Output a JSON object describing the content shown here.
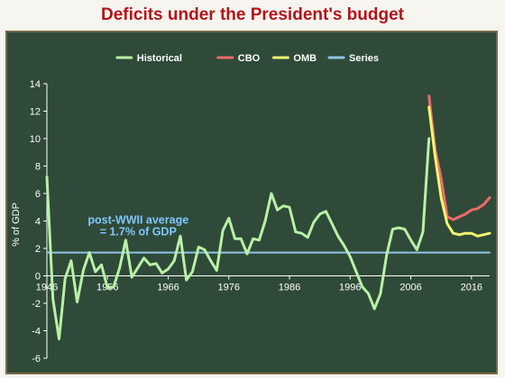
{
  "title": "Deficits under the President's budget",
  "colors": {
    "background": "#2f4a38",
    "historical": "#b8f0a8",
    "cbo": "#f06a6a",
    "omb": "#f5f56e",
    "series": "#8fc4e4",
    "title": "#b3141b"
  },
  "chart_data": {
    "type": "line",
    "title": "Deficits under the President's budget",
    "xlabel": "",
    "ylabel": "% of GDP",
    "xlim": [
      1946,
      2019
    ],
    "ylim": [
      -6,
      14
    ],
    "x_ticks": [
      1946,
      1956,
      1966,
      1976,
      1986,
      1996,
      2006,
      2016
    ],
    "x_tick_labels": [
      "1946",
      "1956",
      "1966",
      "1976",
      "1986",
      "1996",
      "2006",
      "2016"
    ],
    "y_ticks": [
      -6,
      -4,
      -2,
      0,
      2,
      4,
      6,
      8,
      10,
      12,
      14
    ],
    "y_tick_labels": [
      "-6",
      "-4",
      "-2",
      "0",
      "2",
      "4",
      "6",
      "8",
      "10",
      "12",
      "14"
    ],
    "grid": false,
    "legend_position": "top",
    "legend": [
      "Historical",
      "CBO",
      "OMB",
      "Series"
    ],
    "annotation": {
      "lines": [
        "post-WWII average",
        "= 1.7% of GDP"
      ],
      "x": 1956,
      "y": 3.8
    },
    "series": [
      {
        "name": "Historical",
        "x": [
          1946,
          1947,
          1948,
          1949,
          1950,
          1951,
          1952,
          1953,
          1954,
          1955,
          1956,
          1957,
          1958,
          1959,
          1960,
          1961,
          1962,
          1963,
          1964,
          1965,
          1966,
          1967,
          1968,
          1969,
          1970,
          1971,
          1972,
          1973,
          1974,
          1975,
          1976,
          1977,
          1978,
          1979,
          1980,
          1981,
          1982,
          1983,
          1984,
          1985,
          1986,
          1987,
          1988,
          1989,
          1990,
          1991,
          1992,
          1993,
          1994,
          1995,
          1996,
          1997,
          1998,
          1999,
          2000,
          2001,
          2002,
          2003,
          2004,
          2005,
          2006,
          2007,
          2008,
          2009
        ],
        "values": [
          7.2,
          -1.7,
          -4.6,
          -0.2,
          1.1,
          -1.9,
          0.4,
          1.7,
          0.3,
          0.8,
          -0.9,
          -0.8,
          0.6,
          2.6,
          -0.1,
          0.6,
          1.3,
          0.8,
          0.9,
          0.2,
          0.5,
          1.1,
          2.9,
          -0.3,
          0.3,
          2.1,
          1.9,
          1.1,
          0.4,
          3.3,
          4.2,
          2.7,
          2.7,
          1.6,
          2.7,
          2.6,
          4.0,
          6.0,
          4.8,
          5.1,
          5.0,
          3.2,
          3.1,
          2.8,
          3.9,
          4.5,
          4.7,
          3.8,
          2.9,
          2.2,
          1.4,
          0.3,
          -0.8,
          -1.3,
          -2.4,
          -1.3,
          1.5,
          3.4,
          3.5,
          3.4,
          2.6,
          1.9,
          3.2,
          10.0
        ]
      },
      {
        "name": "CBO",
        "x": [
          2009,
          2010,
          2011,
          2012,
          2013,
          2014,
          2015,
          2016,
          2017,
          2018,
          2019
        ],
        "values": [
          13.1,
          9.2,
          7.1,
          4.3,
          4.1,
          4.3,
          4.5,
          4.8,
          4.9,
          5.2,
          5.7
        ]
      },
      {
        "name": "OMB",
        "x": [
          2009,
          2010,
          2011,
          2012,
          2013,
          2014,
          2015,
          2016,
          2017,
          2018,
          2019
        ],
        "values": [
          12.3,
          8.7,
          5.7,
          3.8,
          3.1,
          3.0,
          3.1,
          3.1,
          2.9,
          3.0,
          3.1
        ]
      },
      {
        "name": "Series",
        "x": [
          1946,
          2019
        ],
        "values": [
          1.7,
          1.7
        ]
      }
    ]
  }
}
